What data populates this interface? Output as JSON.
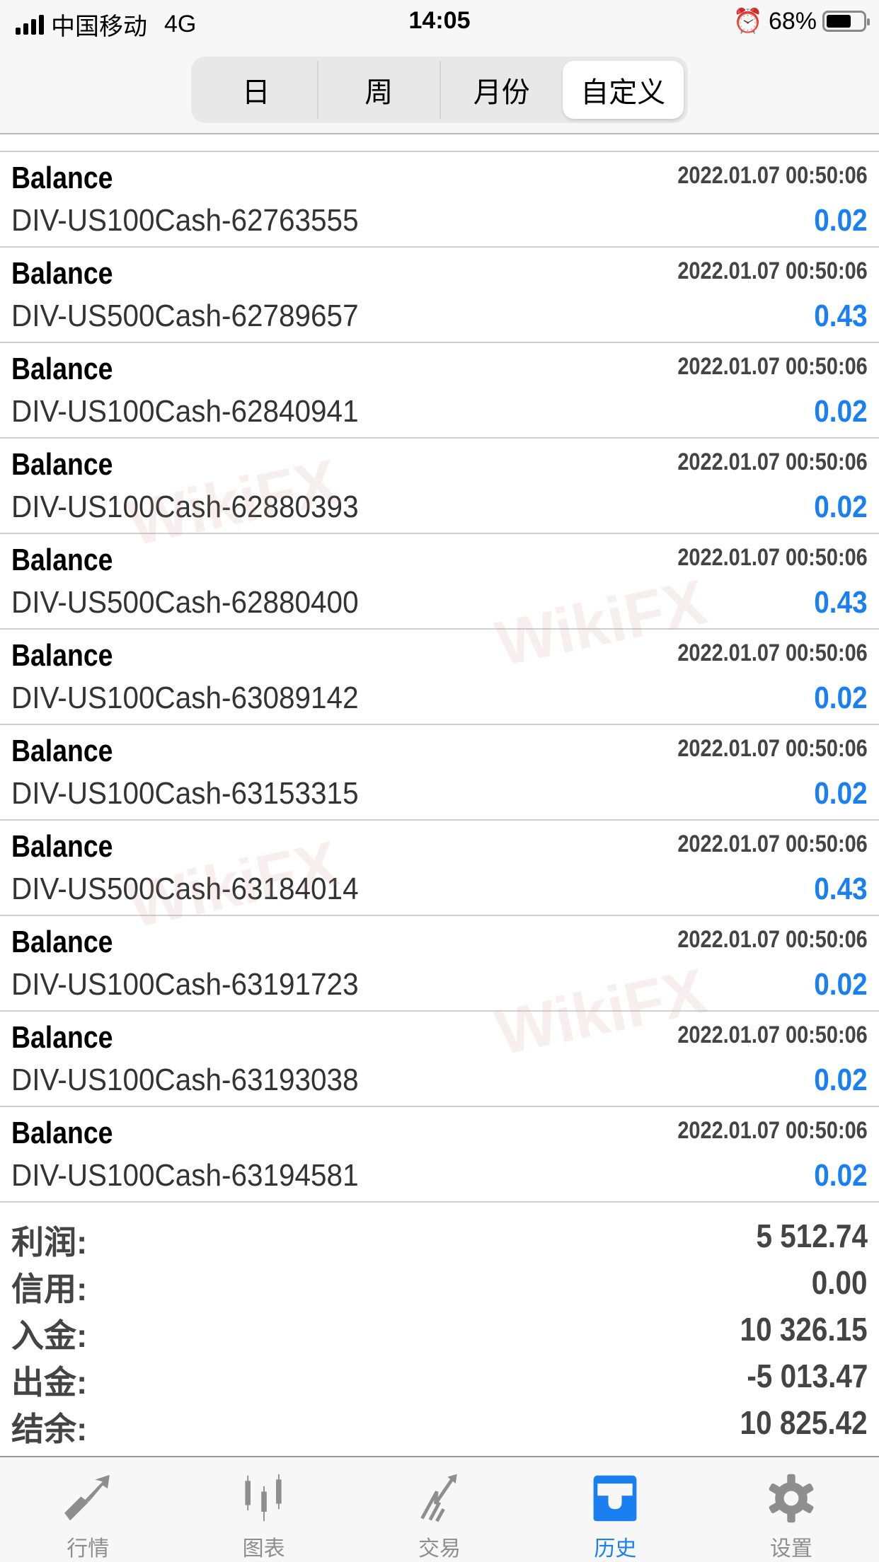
{
  "status": {
    "carrier": "中国移动",
    "network": "4G",
    "time": "14:05",
    "battery": "68%",
    "battery_level": 0.68
  },
  "segments": [
    {
      "label": "日",
      "active": false
    },
    {
      "label": "周",
      "active": false
    },
    {
      "label": "月份",
      "active": false
    },
    {
      "label": "自定义",
      "active": true
    }
  ],
  "rows": [
    {
      "type": "Balance",
      "time": "2022.01.07 00:50:06",
      "symbol": "DIV-US100Cash-62763555",
      "value": "0.02"
    },
    {
      "type": "Balance",
      "time": "2022.01.07 00:50:06",
      "symbol": "DIV-US500Cash-62789657",
      "value": "0.43"
    },
    {
      "type": "Balance",
      "time": "2022.01.07 00:50:06",
      "symbol": "DIV-US100Cash-62840941",
      "value": "0.02"
    },
    {
      "type": "Balance",
      "time": "2022.01.07 00:50:06",
      "symbol": "DIV-US100Cash-62880393",
      "value": "0.02"
    },
    {
      "type": "Balance",
      "time": "2022.01.07 00:50:06",
      "symbol": "DIV-US500Cash-62880400",
      "value": "0.43"
    },
    {
      "type": "Balance",
      "time": "2022.01.07 00:50:06",
      "symbol": "DIV-US100Cash-63089142",
      "value": "0.02"
    },
    {
      "type": "Balance",
      "time": "2022.01.07 00:50:06",
      "symbol": "DIV-US100Cash-63153315",
      "value": "0.02"
    },
    {
      "type": "Balance",
      "time": "2022.01.07 00:50:06",
      "symbol": "DIV-US500Cash-63184014",
      "value": "0.43"
    },
    {
      "type": "Balance",
      "time": "2022.01.07 00:50:06",
      "symbol": "DIV-US100Cash-63191723",
      "value": "0.02"
    },
    {
      "type": "Balance",
      "time": "2022.01.07 00:50:06",
      "symbol": "DIV-US100Cash-63193038",
      "value": "0.02"
    },
    {
      "type": "Balance",
      "time": "2022.01.07 00:50:06",
      "symbol": "DIV-US100Cash-63194581",
      "value": "0.02"
    }
  ],
  "summary": [
    {
      "label": "利润:",
      "value": "5 512.74"
    },
    {
      "label": "信用:",
      "value": "0.00"
    },
    {
      "label": "入金:",
      "value": "10 326.15"
    },
    {
      "label": "出金:",
      "value": "-5 013.47"
    },
    {
      "label": "结余:",
      "value": "10 825.42"
    }
  ],
  "tabs": [
    {
      "label": "行情",
      "icon": "quotes-icon",
      "active": false
    },
    {
      "label": "图表",
      "icon": "chart-icon",
      "active": false
    },
    {
      "label": "交易",
      "icon": "trade-icon",
      "active": false
    },
    {
      "label": "历史",
      "icon": "history-icon",
      "active": true
    },
    {
      "label": "设置",
      "icon": "settings-icon",
      "active": false
    }
  ],
  "watermark": "WikiFX",
  "colors": {
    "accent": "#1a7ff0",
    "inactive": "#8e8e8e"
  }
}
